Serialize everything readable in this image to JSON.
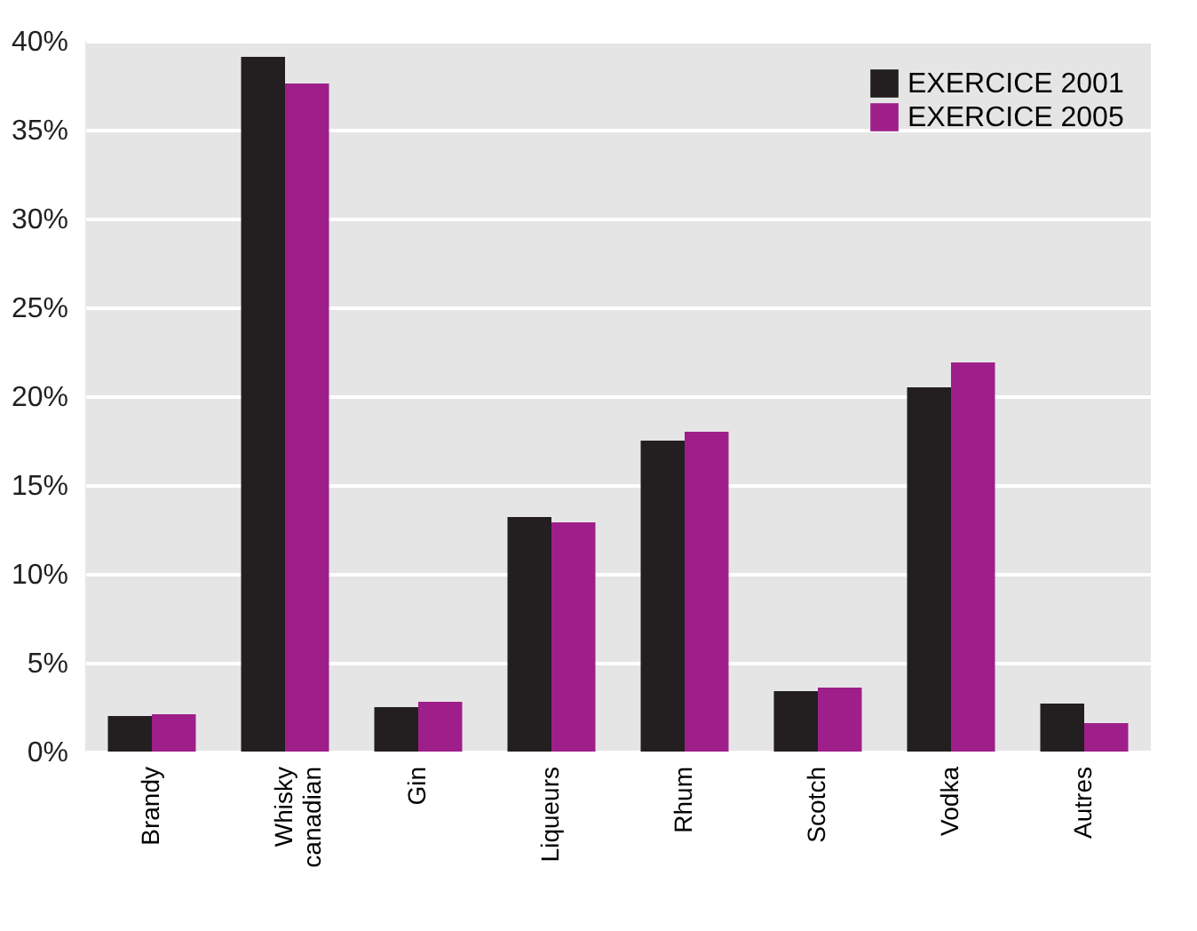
{
  "chart_data": {
    "type": "bar",
    "categories": [
      "Brandy",
      "Whisky canadian",
      "Gin",
      "Liqueurs",
      "Rhum",
      "Scotch",
      "Vodka",
      "Autres"
    ],
    "series": [
      {
        "name": "EXERCICE 2001",
        "color": "#231f20",
        "values": [
          2.0,
          39.1,
          2.5,
          13.2,
          17.5,
          3.4,
          20.5,
          2.7
        ]
      },
      {
        "name": "EXERCICE 2005",
        "color": "#9e1f8a",
        "values": [
          2.1,
          37.6,
          2.8,
          12.9,
          18.0,
          3.6,
          21.9,
          1.6
        ]
      }
    ],
    "ylim": [
      0,
      40
    ],
    "yticks": [
      {
        "value": 0,
        "label": "0%"
      },
      {
        "value": 5,
        "label": "5%"
      },
      {
        "value": 10,
        "label": "10%"
      },
      {
        "value": 15,
        "label": "15%"
      },
      {
        "value": 20,
        "label": "20%"
      },
      {
        "value": 25,
        "label": "25%"
      },
      {
        "value": 30,
        "label": "30%"
      },
      {
        "value": 35,
        "label": "35%"
      },
      {
        "value": 40,
        "label": "40%"
      }
    ],
    "grid": "y",
    "legend": "top right"
  }
}
